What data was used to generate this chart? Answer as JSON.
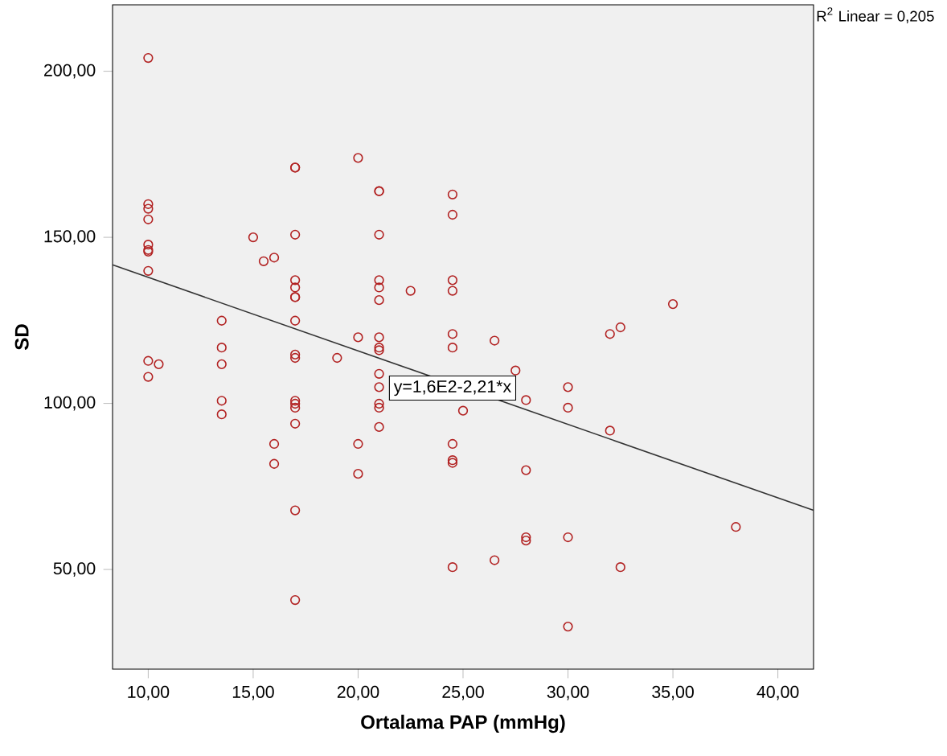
{
  "chart_data": {
    "type": "scatter",
    "xlabel": "Ortalama PAP (mmHg)",
    "ylabel": "SD",
    "xlim": [
      8.3,
      41.7
    ],
    "ylim": [
      20,
      220
    ],
    "xticks": [
      {
        "value": 10,
        "label": "10,00"
      },
      {
        "value": 15,
        "label": "15,00"
      },
      {
        "value": 20,
        "label": "20,00"
      },
      {
        "value": 25,
        "label": "25,00"
      },
      {
        "value": 30,
        "label": "30,00"
      },
      {
        "value": 35,
        "label": "35,00"
      },
      {
        "value": 40,
        "label": "40,00"
      }
    ],
    "yticks": [
      {
        "value": 50,
        "label": "50,00"
      },
      {
        "value": 100,
        "label": "100,00"
      },
      {
        "value": 150,
        "label": "150,00"
      },
      {
        "value": 200,
        "label": "200,00"
      }
    ],
    "marker": "circle",
    "series": [
      {
        "color": "#b22222",
        "x": [
          10,
          10,
          10,
          10,
          10,
          10,
          10,
          10,
          10,
          10,
          10.5,
          13.5,
          13.5,
          13.5,
          13.5,
          13.5,
          15,
          15.5,
          16,
          16,
          16,
          17,
          17,
          17,
          17,
          17,
          17,
          17,
          17,
          17,
          17,
          17,
          17,
          17,
          17,
          17,
          17,
          19,
          20,
          20,
          20,
          20,
          21,
          21,
          21,
          21,
          21,
          21,
          21,
          21,
          21,
          21,
          21,
          21,
          21,
          21,
          22.5,
          24.5,
          24.5,
          24.5,
          24.5,
          24.5,
          24.5,
          24.5,
          24.5,
          24.5,
          24.5,
          25,
          26.5,
          26.5,
          27.5,
          28,
          28,
          28,
          28,
          30,
          30,
          30,
          30,
          32,
          32,
          32.5,
          32.5,
          35,
          38
        ],
        "values": [
          204,
          160,
          158.6,
          155.4,
          147.8,
          146.2,
          145.7,
          139.9,
          112.8,
          108,
          111.8,
          124.9,
          116.8,
          111.8,
          100.8,
          96.7,
          150,
          142.8,
          143.9,
          87.8,
          81.8,
          171,
          150.8,
          137.1,
          134.9,
          132,
          124.9,
          114.7,
          113.7,
          100.8,
          99.9,
          98.7,
          93.9,
          67.8,
          40.8,
          171,
          132,
          113.7,
          173.9,
          119.9,
          87.8,
          78.8,
          163.9,
          150.8,
          137.1,
          134.9,
          131.1,
          119.9,
          116.8,
          116,
          108.9,
          104.9,
          99.9,
          98.7,
          92.9,
          163.9,
          133.9,
          162.9,
          156.8,
          137.1,
          133.9,
          120.9,
          116.8,
          87.8,
          82.9,
          82.1,
          50.7,
          97.8,
          118.9,
          52.8,
          109.9,
          101,
          79.9,
          59.7,
          58.7,
          104.9,
          98.7,
          59.7,
          32.8,
          120.9,
          91.8,
          122.9,
          50.7,
          129.9,
          62.8
        ]
      },
      {
        "type": "line",
        "color": "#333333",
        "marker": "none",
        "x": [
          8.3,
          41.7
        ],
        "values": [
          141.7,
          67.8
        ]
      }
    ],
    "annotations": [
      {
        "text": "y=1,6E2-2,21*x",
        "x": 24.5,
        "y": 104.6
      },
      "R$^{2}$ Linear = 0,205"
    ]
  }
}
